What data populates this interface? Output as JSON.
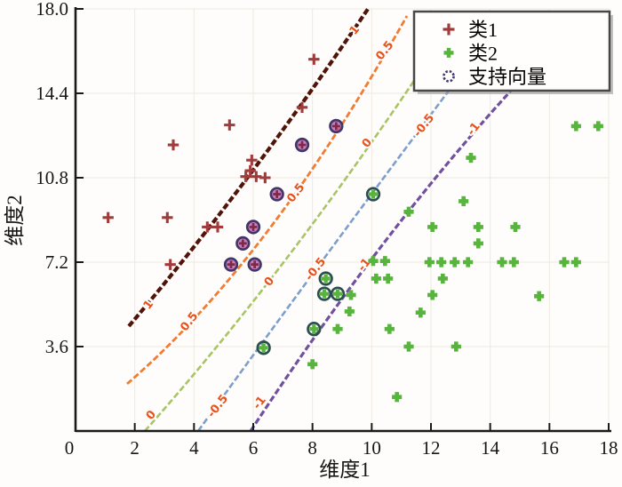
{
  "figure": {
    "x_axis_title": "维度1",
    "y_axis_title": "维度2"
  },
  "legend": {
    "items": [
      {
        "label": "类1",
        "marker": "plus",
        "color": "#a23b3b"
      },
      {
        "label": "类2",
        "marker": "fat-plus",
        "color": "#57b43c"
      },
      {
        "label": "支持向量",
        "marker": "ring",
        "color": "#43376a"
      }
    ]
  },
  "chart_data": {
    "type": "scatter",
    "title": "",
    "xlabel": "维度1",
    "ylabel": "维度2",
    "xlim": [
      0,
      18
    ],
    "ylim": [
      0,
      18
    ],
    "x_ticks": [
      0,
      2,
      4,
      6,
      8,
      10,
      12,
      14,
      16,
      18
    ],
    "y_ticks": [
      0,
      3.6,
      7.2,
      10.8,
      14.4,
      18.0
    ],
    "y_tick_labels": [
      "0",
      "3.6",
      "7.2",
      "10.8",
      "14.4",
      "18.0"
    ],
    "grid": true,
    "legend_position": "top-right",
    "label_style": {
      "color": "#e8511c",
      "rotation": -52
    },
    "series": [
      {
        "name": "类1",
        "marker": "plus",
        "color": "#a23b3b",
        "points": [
          [
            1.1,
            9.1
          ],
          [
            3.1,
            9.1
          ],
          [
            3.2,
            7.1
          ],
          [
            3.3,
            12.2
          ],
          [
            4.45,
            8.7
          ],
          [
            4.8,
            8.7
          ],
          [
            5.2,
            13.05
          ],
          [
            5.95,
            11.55
          ],
          [
            5.9,
            11.1
          ],
          [
            5.75,
            10.85
          ],
          [
            6.1,
            10.85
          ],
          [
            6.4,
            10.8
          ],
          [
            7.65,
            13.8
          ],
          [
            8.05,
            15.85
          ]
        ]
      },
      {
        "name": "类1支持向量",
        "marker": "plus-ring",
        "color": "#a23b3b",
        "ring_color": "#413667",
        "ring_fill": "#bb5fae",
        "points": [
          [
            5.25,
            7.1
          ],
          [
            6.05,
            7.1
          ],
          [
            5.65,
            8.0
          ],
          [
            6.0,
            8.7
          ],
          [
            6.8,
            10.1
          ],
          [
            7.65,
            12.2
          ],
          [
            8.8,
            13.0
          ]
        ]
      },
      {
        "name": "类2",
        "marker": "fat-plus",
        "color": "#57b43c",
        "points": [
          [
            16.9,
            13.0
          ],
          [
            17.65,
            13.0
          ],
          [
            13.35,
            11.65
          ],
          [
            13.1,
            9.8
          ],
          [
            11.25,
            9.35
          ],
          [
            12.05,
            8.7
          ],
          [
            13.6,
            8.7
          ],
          [
            14.85,
            8.7
          ],
          [
            13.6,
            8.0
          ],
          [
            10.05,
            7.25
          ],
          [
            10.45,
            7.25
          ],
          [
            11.95,
            7.2
          ],
          [
            12.35,
            7.2
          ],
          [
            12.8,
            7.2
          ],
          [
            13.25,
            7.2
          ],
          [
            14.4,
            7.2
          ],
          [
            14.8,
            7.2
          ],
          [
            16.5,
            7.2
          ],
          [
            16.9,
            7.2
          ],
          [
            10.15,
            6.5
          ],
          [
            10.55,
            6.5
          ],
          [
            12.4,
            6.5
          ],
          [
            9.3,
            5.8
          ],
          [
            12.05,
            5.8
          ],
          [
            15.65,
            5.75
          ],
          [
            9.25,
            5.1
          ],
          [
            11.65,
            5.05
          ],
          [
            8.85,
            4.35
          ],
          [
            10.6,
            4.35
          ],
          [
            8.0,
            2.85
          ],
          [
            11.25,
            3.6
          ],
          [
            12.85,
            3.6
          ],
          [
            10.85,
            1.45
          ]
        ]
      },
      {
        "name": "类2支持向量",
        "marker": "fat-plus-ring",
        "color": "#57b43c",
        "ring_color": "#2c4f4e",
        "ring_fill": "none",
        "points": [
          [
            6.35,
            3.55
          ],
          [
            8.05,
            4.35
          ],
          [
            8.4,
            5.85
          ],
          [
            8.85,
            5.85
          ],
          [
            8.45,
            6.5
          ],
          [
            10.05,
            10.1
          ]
        ]
      }
    ],
    "boundaries": [
      {
        "level": "1",
        "color": "#511409",
        "width": 4.2,
        "p0": [
          1.8,
          4.47
        ],
        "c": [
          5.85,
          10.5
        ],
        "p2": [
          9.9,
          18.05
        ],
        "labels": [
          [
            2.46,
            5.38
          ],
          [
            9.42,
            17.09
          ]
        ]
      },
      {
        "level": "0.5",
        "color": "#ef7d33",
        "width": 2.8,
        "p0": [
          1.74,
          2.01
        ],
        "c": [
          6.51,
          7.2
        ],
        "p2": [
          11.19,
          17.7
        ],
        "labels": [
          [
            3.84,
            4.66
          ],
          [
            7.44,
            10.15
          ],
          [
            10.44,
            16.22
          ]
        ]
      },
      {
        "level": "0",
        "color": "#a9c464",
        "width": 2.6,
        "p0": [
          2.34,
          0.0
        ],
        "c": [
          6.93,
          6.52
        ],
        "p2": [
          11.55,
          15.16
        ],
        "labels": [
          [
            2.55,
            0.68
          ],
          [
            6.54,
            6.37
          ],
          [
            9.84,
            12.28
          ]
        ]
      },
      {
        "level": "-0.5",
        "color": "#7e9fcb",
        "width": 2.6,
        "p0": [
          4.14,
          0.0
        ],
        "c": [
          8.43,
          7.5
        ],
        "p2": [
          12.69,
          14.66
        ],
        "labels": [
          [
            4.8,
            1.06
          ],
          [
            8.1,
            6.9
          ],
          [
            11.76,
            13.03
          ]
        ]
      },
      {
        "level": "-1",
        "color": "#70509f",
        "width": 3.2,
        "p0": [
          5.91,
          0.0
        ],
        "c": [
          10.29,
          8.41
        ],
        "p2": [
          14.7,
          14.51
        ],
        "labels": [
          [
            6.21,
            1.21
          ],
          [
            9.75,
            7.09
          ],
          [
            13.44,
            12.88
          ]
        ]
      }
    ]
  }
}
